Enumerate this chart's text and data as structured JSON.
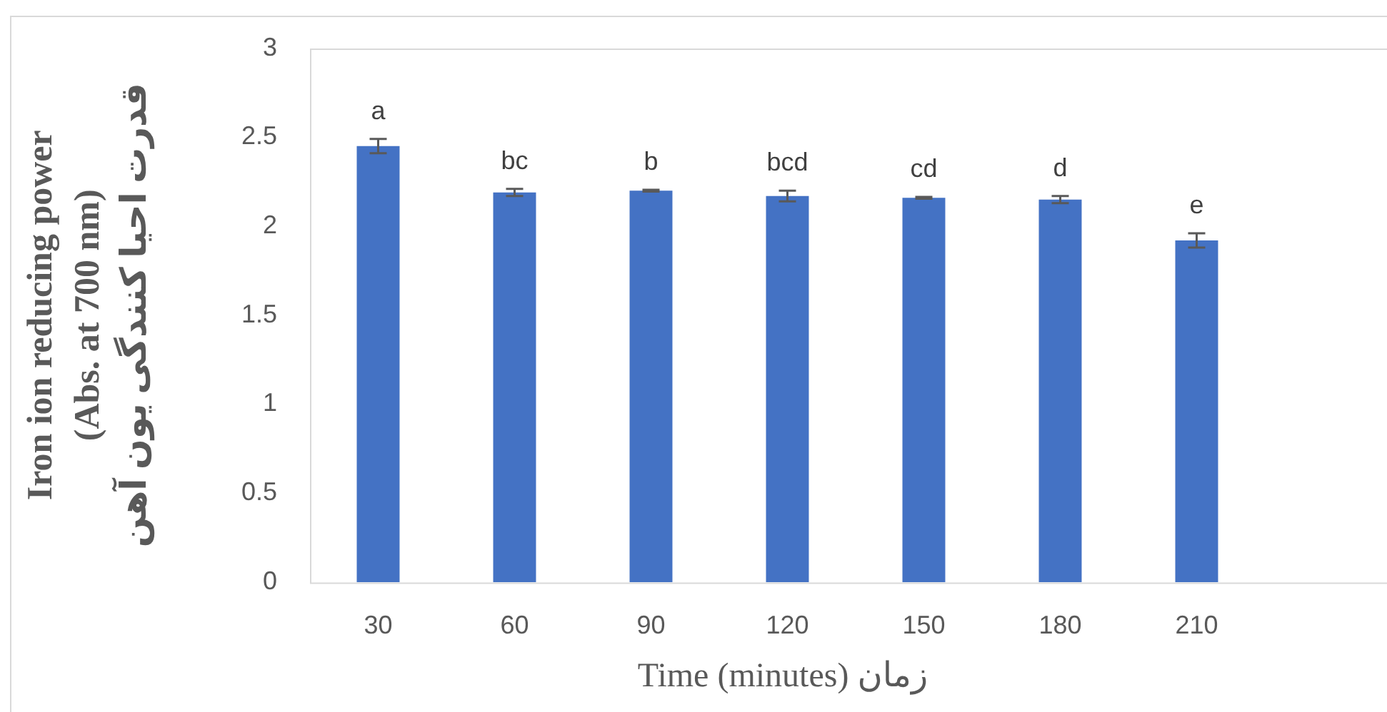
{
  "chart_data": {
    "type": "bar",
    "xlabel": "Time (minutes) زمان",
    "ylabel": "Iron ion reducing power\n(Abs. at 700 nm)\nقدرت احیا کنندگی یون آهن",
    "categories": [
      "30",
      "60",
      "90",
      "120",
      "150",
      "180",
      "210",
      null
    ],
    "values": [
      2.45,
      2.19,
      2.2,
      2.17,
      2.16,
      2.15,
      1.92,
      null
    ],
    "errors": [
      0.04,
      0.02,
      0.005,
      0.03,
      0.005,
      0.02,
      0.04,
      null
    ],
    "value_labels": [
      "a",
      "bc",
      "b",
      "bcd",
      "cd",
      "d",
      "e",
      null
    ],
    "color": "#4472c4",
    "ylim": [
      0,
      3
    ],
    "yticks": [
      0,
      0.5,
      1,
      1.5,
      2,
      2.5,
      3
    ],
    "grid": false
  }
}
